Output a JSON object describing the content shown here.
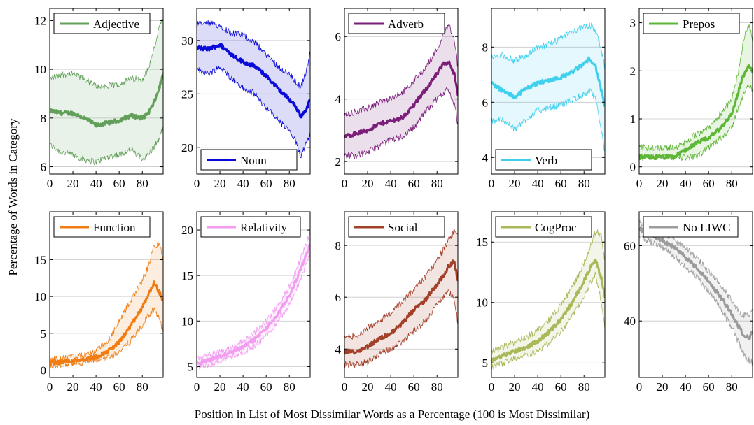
{
  "figure": {
    "xlabel": "Position in List of Most Dissimilar Words as a Percentage (100 is Most Dissimilar)",
    "ylabel": "Percentage of Words in Category"
  },
  "chart_data": [
    {
      "type": "line",
      "title": "",
      "legend": "Adjective",
      "legend_position": "top-left",
      "color": "#62a05a",
      "grid": true,
      "xlim": [
        0,
        98
      ],
      "ylim": [
        5.7,
        12.5
      ],
      "xticks": [
        0,
        20,
        40,
        60,
        80
      ],
      "yticks": [
        6,
        8,
        10,
        12
      ],
      "x": [
        0,
        10,
        20,
        30,
        40,
        50,
        60,
        70,
        80,
        85,
        90,
        95,
        98
      ],
      "y": [
        8.3,
        8.2,
        8.2,
        8.0,
        7.7,
        7.8,
        7.9,
        8.1,
        8.0,
        8.2,
        8.6,
        9.3,
        9.8
      ],
      "lower": [
        6.9,
        6.6,
        6.5,
        6.3,
        6.2,
        6.4,
        6.5,
        6.7,
        6.3,
        6.5,
        6.8,
        7.2,
        7.6
      ],
      "upper": [
        9.6,
        9.8,
        9.8,
        9.6,
        9.3,
        9.3,
        9.4,
        9.6,
        9.6,
        10.0,
        10.8,
        11.8,
        12.0
      ]
    },
    {
      "type": "line",
      "title": "",
      "legend": "Noun",
      "legend_position": "bottom-left",
      "color": "#0a0ad8",
      "grid": true,
      "xlim": [
        0,
        98
      ],
      "ylim": [
        17.5,
        33
      ],
      "xticks": [
        0,
        20,
        40,
        60,
        80
      ],
      "yticks": [
        20,
        25,
        30
      ],
      "x": [
        0,
        10,
        20,
        30,
        40,
        50,
        60,
        70,
        80,
        85,
        90,
        95,
        98
      ],
      "y": [
        29.3,
        29.2,
        29.6,
        28.7,
        28.0,
        27.6,
        26.7,
        25.5,
        24.5,
        23.9,
        22.9,
        23.6,
        24.5
      ],
      "lower": [
        27.3,
        26.9,
        27.5,
        26.5,
        25.5,
        25.0,
        23.7,
        22.6,
        21.5,
        20.6,
        19.2,
        20.6,
        21.4
      ],
      "upper": [
        31.5,
        31.6,
        31.4,
        30.7,
        30.5,
        29.8,
        28.7,
        27.6,
        26.8,
        26.2,
        25.6,
        27.2,
        28.9
      ]
    },
    {
      "type": "line",
      "title": "",
      "legend": "Adverb",
      "legend_position": "top-left",
      "color": "#7a1e7a",
      "grid": true,
      "xlim": [
        0,
        98
      ],
      "ylim": [
        1.6,
        6.9
      ],
      "xticks": [
        0,
        20,
        40,
        60,
        80
      ],
      "yticks": [
        2,
        4,
        6
      ],
      "x": [
        0,
        10,
        20,
        30,
        40,
        50,
        60,
        70,
        80,
        85,
        90,
        95,
        98
      ],
      "y": [
        2.8,
        2.9,
        3.0,
        3.2,
        3.3,
        3.4,
        3.8,
        4.3,
        4.8,
        5.1,
        5.2,
        4.8,
        4.1
      ],
      "lower": [
        2.2,
        2.2,
        2.3,
        2.5,
        2.7,
        2.8,
        3.1,
        3.6,
        4.0,
        4.2,
        4.3,
        3.8,
        3.2
      ],
      "upper": [
        3.5,
        3.6,
        3.7,
        3.9,
        4.0,
        4.2,
        4.6,
        5.0,
        5.6,
        6.0,
        6.4,
        5.9,
        5.0
      ]
    },
    {
      "type": "line",
      "title": "",
      "legend": "Verb",
      "legend_position": "bottom-left",
      "color": "#3fd0ee",
      "grid": true,
      "xlim": [
        0,
        98
      ],
      "ylim": [
        3.4,
        9.4
      ],
      "xticks": [
        0,
        20,
        40,
        60,
        80
      ],
      "yticks": [
        4,
        6,
        8
      ],
      "x": [
        0,
        10,
        20,
        30,
        40,
        50,
        60,
        70,
        80,
        85,
        90,
        95,
        98
      ],
      "y": [
        6.7,
        6.4,
        6.2,
        6.5,
        6.7,
        6.8,
        6.9,
        7.1,
        7.4,
        7.6,
        7.3,
        6.4,
        5.8
      ],
      "lower": [
        5.3,
        5.4,
        5.0,
        5.4,
        5.7,
        5.8,
        5.9,
        6.1,
        6.3,
        6.4,
        6.1,
        5.0,
        4.2
      ],
      "upper": [
        7.6,
        7.7,
        7.5,
        7.7,
        8.0,
        8.1,
        8.3,
        8.6,
        8.7,
        8.8,
        8.6,
        7.9,
        7.2
      ]
    },
    {
      "type": "line",
      "title": "",
      "legend": "Prepos",
      "legend_position": "top-left",
      "color": "#5db635",
      "grid": true,
      "xlim": [
        0,
        98
      ],
      "ylim": [
        -0.15,
        3.3
      ],
      "xticks": [
        0,
        20,
        40,
        60,
        80
      ],
      "yticks": [
        0,
        1,
        2,
        3
      ],
      "x": [
        0,
        10,
        20,
        30,
        40,
        50,
        60,
        70,
        80,
        85,
        90,
        95,
        98
      ],
      "y": [
        0.2,
        0.2,
        0.2,
        0.2,
        0.35,
        0.5,
        0.6,
        0.8,
        1.1,
        1.5,
        1.9,
        2.1,
        2.0
      ],
      "lower": [
        0.2,
        0.2,
        0.2,
        0.2,
        0.2,
        0.2,
        0.4,
        0.6,
        0.8,
        1.2,
        1.5,
        1.7,
        1.6
      ],
      "upper": [
        0.4,
        0.4,
        0.4,
        0.4,
        0.5,
        0.7,
        0.8,
        1.1,
        1.4,
        1.9,
        2.6,
        3.0,
        2.6
      ]
    },
    {
      "type": "line",
      "title": "",
      "legend": "Function",
      "legend_position": "top-left",
      "color": "#f07c12",
      "grid": true,
      "xlim": [
        0,
        98
      ],
      "ylim": [
        -1,
        21.5
      ],
      "xticks": [
        0,
        20,
        40,
        60,
        80
      ],
      "yticks": [
        0,
        5,
        10,
        15
      ],
      "x": [
        0,
        10,
        20,
        30,
        40,
        50,
        60,
        70,
        80,
        85,
        90,
        95,
        98
      ],
      "y": [
        1.0,
        1.1,
        1.3,
        1.5,
        1.8,
        2.5,
        3.8,
        6.0,
        8.5,
        10.2,
        11.8,
        10.5,
        9.2
      ],
      "lower": [
        0.6,
        0.7,
        0.9,
        1.1,
        1.3,
        1.7,
        2.5,
        4.0,
        6.0,
        7.4,
        8.3,
        6.8,
        5.3
      ],
      "upper": [
        1.4,
        1.5,
        1.8,
        2.0,
        2.6,
        3.8,
        6.5,
        9.5,
        12.2,
        14.0,
        16.8,
        17.2,
        15.0
      ]
    },
    {
      "type": "line",
      "title": "",
      "legend": "Relativity",
      "legend_position": "top-left",
      "color": "#f29df0",
      "grid": true,
      "xlim": [
        0,
        98
      ],
      "ylim": [
        3.8,
        22
      ],
      "xticks": [
        0,
        20,
        40,
        60,
        80
      ],
      "yticks": [
        5,
        10,
        15,
        20
      ],
      "x": [
        0,
        10,
        20,
        30,
        40,
        50,
        60,
        70,
        80,
        85,
        90,
        95,
        98
      ],
      "y": [
        5.3,
        5.7,
        6.1,
        6.6,
        7.2,
        8.0,
        9.2,
        10.7,
        12.8,
        14.2,
        15.8,
        17.4,
        18.5
      ],
      "lower": [
        4.8,
        5.2,
        5.6,
        6.1,
        6.6,
        7.3,
        8.4,
        9.9,
        11.9,
        13.2,
        14.7,
        16.3,
        17.4
      ],
      "upper": [
        5.9,
        6.2,
        6.6,
        7.1,
        7.8,
        8.7,
        10.0,
        11.6,
        13.7,
        15.2,
        16.9,
        18.6,
        19.9
      ]
    },
    {
      "type": "line",
      "title": "",
      "legend": "Social",
      "legend_position": "top-left",
      "color": "#a3402a",
      "grid": true,
      "xlim": [
        0,
        98
      ],
      "ylim": [
        2.9,
        9.3
      ],
      "xticks": [
        0,
        20,
        40,
        60,
        80
      ],
      "yticks": [
        4,
        6,
        8
      ],
      "x": [
        0,
        10,
        20,
        30,
        40,
        50,
        60,
        70,
        80,
        85,
        90,
        95,
        98
      ],
      "y": [
        3.9,
        3.9,
        4.1,
        4.4,
        4.6,
        5.0,
        5.5,
        5.9,
        6.5,
        6.8,
        7.2,
        7.4,
        6.6
      ],
      "lower": [
        3.4,
        3.4,
        3.5,
        3.8,
        4.0,
        4.3,
        4.7,
        5.1,
        5.7,
        6.0,
        6.2,
        5.9,
        5.0
      ],
      "upper": [
        4.5,
        4.5,
        4.8,
        5.1,
        5.4,
        5.8,
        6.3,
        6.8,
        7.4,
        7.8,
        8.2,
        8.6,
        8.4
      ]
    },
    {
      "type": "line",
      "title": "",
      "legend": "CogProc",
      "legend_position": "top-left",
      "color": "#a9b959",
      "grid": true,
      "xlim": [
        0,
        98
      ],
      "ylim": [
        3.8,
        17.5
      ],
      "xticks": [
        0,
        20,
        40,
        60,
        80
      ],
      "yticks": [
        5,
        10,
        15
      ],
      "x": [
        0,
        10,
        20,
        30,
        40,
        50,
        60,
        70,
        80,
        85,
        90,
        95,
        98
      ],
      "y": [
        5.2,
        5.6,
        6.0,
        6.3,
        6.8,
        7.6,
        8.6,
        10.0,
        11.8,
        12.8,
        13.5,
        12.0,
        10.5
      ],
      "lower": [
        4.6,
        5.0,
        5.4,
        5.6,
        6.0,
        6.7,
        7.6,
        8.9,
        10.5,
        11.5,
        12.3,
        10.0,
        7.8
      ],
      "upper": [
        5.9,
        6.3,
        6.7,
        7.1,
        7.7,
        8.6,
        9.8,
        11.3,
        13.2,
        14.5,
        15.9,
        15.5,
        13.2
      ]
    },
    {
      "type": "line",
      "title": "",
      "legend": "No LIWC",
      "legend_position": "top-right",
      "color": "#9b9b9b",
      "grid": true,
      "xlim": [
        0,
        98
      ],
      "ylim": [
        25,
        69
      ],
      "xticks": [
        0,
        20,
        40,
        60,
        80
      ],
      "yticks": [
        40,
        60
      ],
      "x": [
        0,
        10,
        20,
        30,
        40,
        50,
        60,
        70,
        80,
        85,
        90,
        95,
        98
      ],
      "y": [
        64.5,
        63.0,
        61.5,
        59.5,
        57.0,
        54.0,
        50.5,
        46.5,
        42.0,
        39.0,
        36.5,
        35.5,
        37.0
      ],
      "lower": [
        62.5,
        61.0,
        59.5,
        57.2,
        54.5,
        51.5,
        47.8,
        43.5,
        38.5,
        35.0,
        31.5,
        29.5,
        29.0
      ],
      "upper": [
        66.5,
        65.0,
        63.5,
        61.8,
        59.5,
        56.5,
        53.2,
        49.5,
        45.5,
        43.0,
        41.5,
        41.5,
        42.5
      ]
    }
  ]
}
